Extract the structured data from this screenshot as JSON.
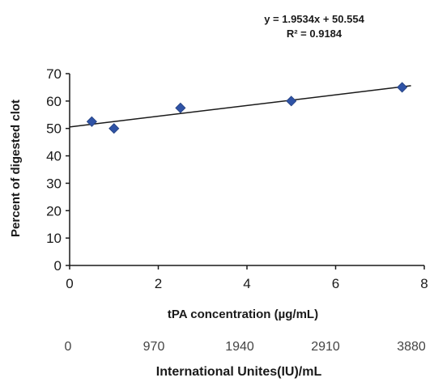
{
  "chart_data": {
    "type": "scatter",
    "x": [
      0.5,
      1,
      2.5,
      5,
      7.5
    ],
    "y": [
      52.5,
      50,
      57.5,
      60,
      65
    ],
    "xlim": [
      0,
      8
    ],
    "ylim": [
      0,
      70
    ],
    "x_ticks": [
      "0",
      "2",
      "4",
      "6",
      "8"
    ],
    "y_ticks": [
      "0",
      "10",
      "20",
      "30",
      "40",
      "50",
      "60",
      "70"
    ],
    "xlabel": "tPA concentration (µg/mL)",
    "ylabel": "Percent of digested clot",
    "grid": false,
    "trendline": {
      "slope": 1.9534,
      "intercept": 50.554,
      "equation": "y = 1.9534x + 50.554",
      "r_squared": "R² = 0.9184"
    },
    "secondary_axis": {
      "label": "International Unites(IU)/mL",
      "ticks": [
        "0",
        "970",
        "1940",
        "2910",
        "3880"
      ]
    },
    "marker_color": "#2f53a6",
    "line_color": "#1a1a1a"
  }
}
